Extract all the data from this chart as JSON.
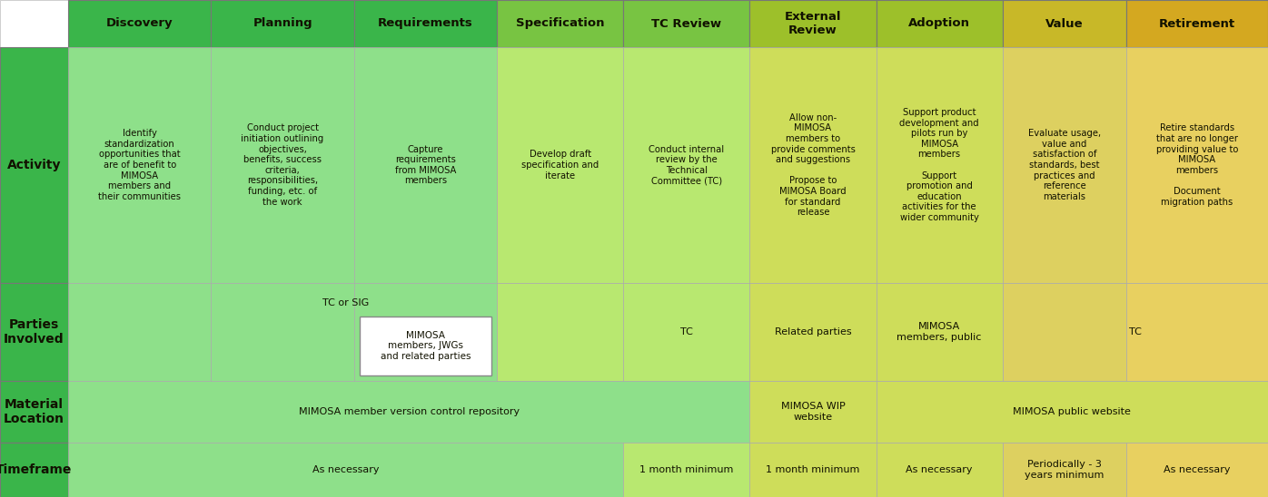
{
  "columns": [
    "Discovery",
    "Planning",
    "Requirements",
    "Specification",
    "TC Review",
    "External\nReview",
    "Adoption",
    "Value",
    "Retirement"
  ],
  "header_colors": [
    "#3ab54a",
    "#3ab54a",
    "#3ab54a",
    "#78c442",
    "#78c442",
    "#9dc02a",
    "#9dc02a",
    "#c8b828",
    "#d4a820"
  ],
  "act_colors": [
    "#8ee08a",
    "#8ee08a",
    "#8ee08a",
    "#b8e870",
    "#b8e870",
    "#cedd5a",
    "#cedd5a",
    "#ddd060",
    "#e8d060"
  ],
  "par_colors": [
    "#8ee08a",
    "#8ee08a",
    "#8ee08a",
    "#b8e870",
    "#b8e870",
    "#cedd5a",
    "#cedd5a",
    "#ddd060",
    "#e8d060"
  ],
  "mat_colors": [
    "#8ee08a",
    "#8ee08a",
    "#8ee08a",
    "#b8e870",
    "#b8e870",
    "#cedd5a",
    "#cedd5a",
    "#ddd060",
    "#e8d060"
  ],
  "tf_colors": [
    "#8ee08a",
    "#8ee08a",
    "#8ee08a",
    "#b8e870",
    "#b8e870",
    "#cedd5a",
    "#cedd5a",
    "#ddd060",
    "#e8d060"
  ],
  "row_label_bg": "#3ab54a",
  "text_color": "#111100",
  "activity_texts": [
    "Identify\nstandardization\nopportunities that\nare of benefit to\nMIMOSA\nmembers and\ntheir communities",
    "Conduct project\ninitiation outlining\nobjectives,\nbenefits, success\ncriteria,\nresponsibilities,\nfunding, etc. of\nthe work",
    "Capture\nrequirements\nfrom MIMOSA\nmembers",
    "Develop draft\nspecification and\niterate",
    "Conduct internal\nreview by the\nTechnical\nCommittee (TC)",
    "Allow non-\nMIMOSA\nmembers to\nprovide comments\nand suggestions\n\nPropose to\nMIMOSA Board\nfor standard\nrelease",
    "Support product\ndevelopment and\npilots run by\nMIMOSA\nmembers\n\nSupport\npromotion and\neducation\nactivities for the\nwider community",
    "Evaluate usage,\nvalue and\nsatisfaction of\nstandards, best\npractices and\nreference\nmaterials",
    "Retire standards\nthat are no longer\nproviding value to\nMIMOSA\nmembers\n\nDocument\nmigration paths"
  ]
}
